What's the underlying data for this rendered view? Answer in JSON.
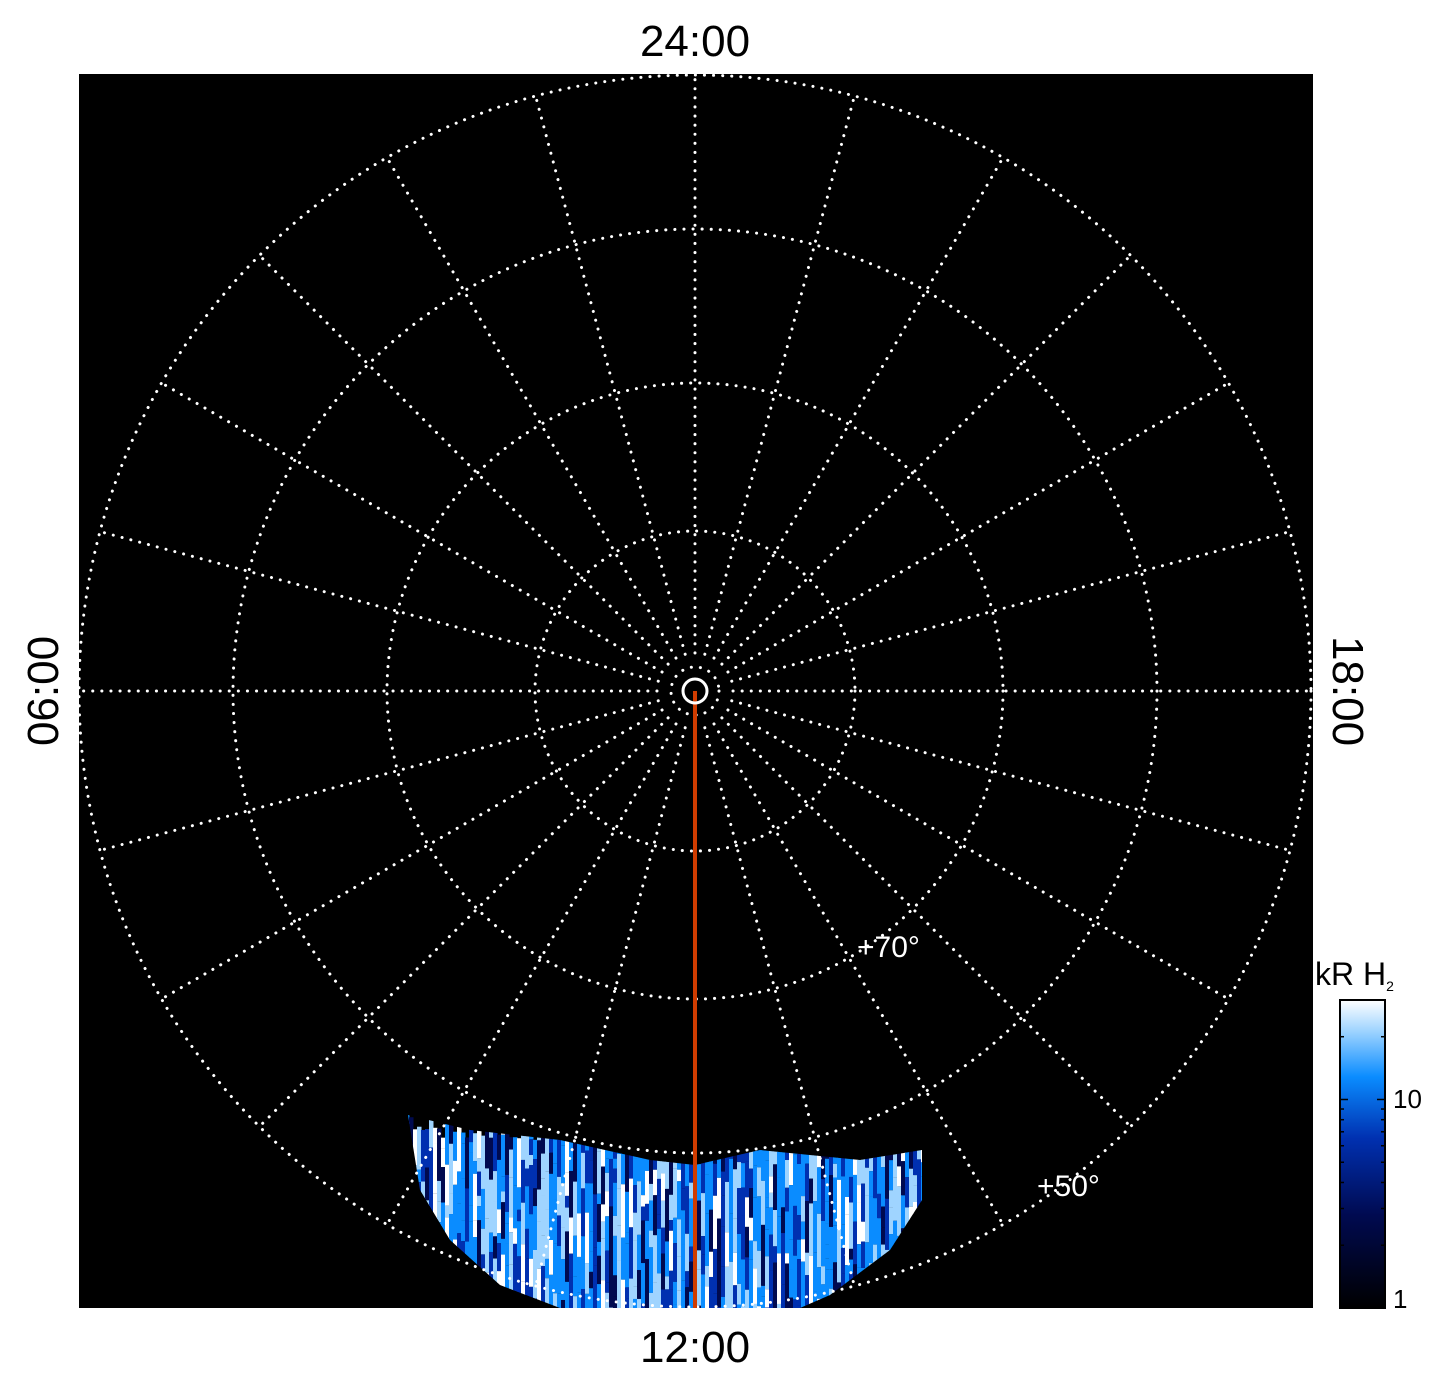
{
  "chart_data": {
    "type": "heatmap",
    "projection": "polar",
    "hemisphere": "north",
    "local_time_labels": {
      "top": "24:00",
      "left": "06:00",
      "bottom": "12:00",
      "right": "18:00"
    },
    "latitude_circles": [
      80,
      70,
      60,
      50
    ],
    "latitude_labels": [
      "+70°",
      "+50°"
    ],
    "meridian_step_hours": 1,
    "grid": true,
    "highlight_line": {
      "local_time": "12:00",
      "color": "#d03c00"
    },
    "emission_region": {
      "local_time_range": [
        "09:40",
        "14:00"
      ],
      "latitude_range": [
        50,
        57
      ]
    },
    "colorbar": {
      "label": "kR H",
      "label_subscript": "2",
      "scale": "log",
      "range": [
        1,
        30
      ],
      "tick_labels": [
        "10",
        "1"
      ],
      "ticks": [
        10,
        1
      ],
      "colormap": [
        "#000000",
        "#000a50",
        "#0030b0",
        "#0a8cff",
        "#9fd4ff",
        "#ffffff"
      ],
      "placement": "right"
    },
    "background": "#000000"
  }
}
